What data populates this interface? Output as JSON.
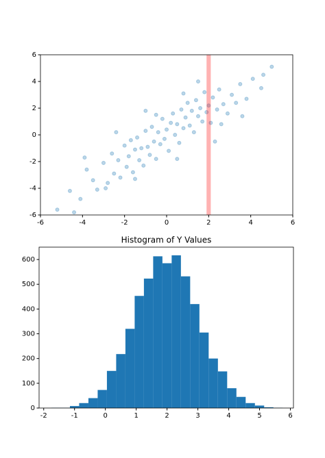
{
  "chart_data": [
    {
      "type": "scatter",
      "color": "#1f77b4",
      "alpha": 0.3,
      "x": [
        -5.2,
        -4.6,
        -4.1,
        -3.8,
        -3.5,
        -3.3,
        -3.0,
        -2.8,
        -2.6,
        -2.5,
        -2.3,
        -2.2,
        -2.0,
        -1.9,
        -1.8,
        -1.7,
        -1.6,
        -1.5,
        -1.4,
        -1.3,
        -1.2,
        -1.1,
        -1.0,
        -0.9,
        -0.8,
        -0.7,
        -0.6,
        -0.5,
        -0.4,
        -0.3,
        -0.2,
        -0.1,
        0.0,
        0.1,
        0.2,
        0.3,
        0.4,
        0.5,
        0.6,
        0.7,
        0.8,
        0.9,
        1.0,
        1.1,
        1.2,
        1.3,
        1.4,
        1.5,
        1.6,
        1.7,
        1.8,
        1.9,
        2.0,
        2.1,
        2.2,
        2.4,
        2.5,
        2.7,
        2.9,
        3.1,
        3.3,
        3.5,
        3.8,
        4.1,
        4.5,
        5.0,
        -3.9,
        -2.9,
        -1.5,
        -0.5,
        0.5,
        1.5,
        2.6,
        3.6,
        -2.4,
        -1.0,
        0.8,
        2.3,
        -4.4,
        4.6
      ],
      "values": [
        -5.6,
        -4.2,
        -4.8,
        -2.6,
        -3.4,
        -4.1,
        -2.1,
        -3.6,
        -1.4,
        -2.9,
        -1.9,
        -3.2,
        -0.8,
        -2.4,
        -1.6,
        -0.4,
        -2.8,
        -1.1,
        -0.2,
        -1.9,
        -1.0,
        -2.3,
        0.3,
        -0.9,
        -1.5,
        0.6,
        -0.5,
        -1.8,
        0.2,
        -0.7,
        1.2,
        -0.3,
        0.4,
        -1.2,
        0.9,
        1.6,
        0.0,
        0.8,
        -0.6,
        1.9,
        0.5,
        1.3,
        2.4,
        0.7,
        1.8,
        0.2,
        2.6,
        1.4,
        2.0,
        1.0,
        3.2,
        1.7,
        2.2,
        0.9,
        2.8,
        1.9,
        3.4,
        2.3,
        1.6,
        3.0,
        2.4,
        3.8,
        2.7,
        4.2,
        3.5,
        5.1,
        -1.7,
        -4.0,
        -3.3,
        1.5,
        -1.8,
        4.0,
        0.8,
        1.4,
        0.2,
        1.8,
        3.1,
        -0.5,
        -5.8,
        4.5
      ],
      "span": {
        "xmin": 1.9,
        "xmax": 2.1,
        "color": "#ff0000",
        "alpha": 0.3
      },
      "xlim": [
        -6,
        6
      ],
      "ylim": [
        -6,
        6
      ],
      "xticks": [
        -6,
        -4,
        -2,
        0,
        2,
        4,
        6
      ],
      "yticks": [
        -6,
        -4,
        -2,
        0,
        2,
        4,
        6
      ]
    },
    {
      "type": "histogram",
      "title": "Histogram of Y Values",
      "color": "#1f77b4",
      "bins": [
        -1.75,
        -1.45,
        -1.15,
        -0.85,
        -0.55,
        -0.25,
        0.05,
        0.35,
        0.65,
        0.95,
        1.25,
        1.55,
        1.85,
        2.15,
        2.45,
        2.75,
        3.05,
        3.35,
        3.65,
        3.95,
        4.25,
        4.55,
        4.85,
        5.15,
        5.45,
        5.75
      ],
      "values": [
        1,
        1,
        8,
        20,
        40,
        73,
        150,
        218,
        320,
        453,
        523,
        613,
        585,
        617,
        532,
        420,
        305,
        200,
        148,
        80,
        45,
        20,
        10,
        3,
        1
      ],
      "xlim": [
        -2.15,
        6.1
      ],
      "ylim": [
        0,
        650
      ],
      "xticks": [
        -2,
        -1,
        0,
        1,
        2,
        3,
        4,
        5,
        6
      ],
      "yticks": [
        0,
        100,
        200,
        300,
        400,
        500,
        600
      ]
    }
  ]
}
